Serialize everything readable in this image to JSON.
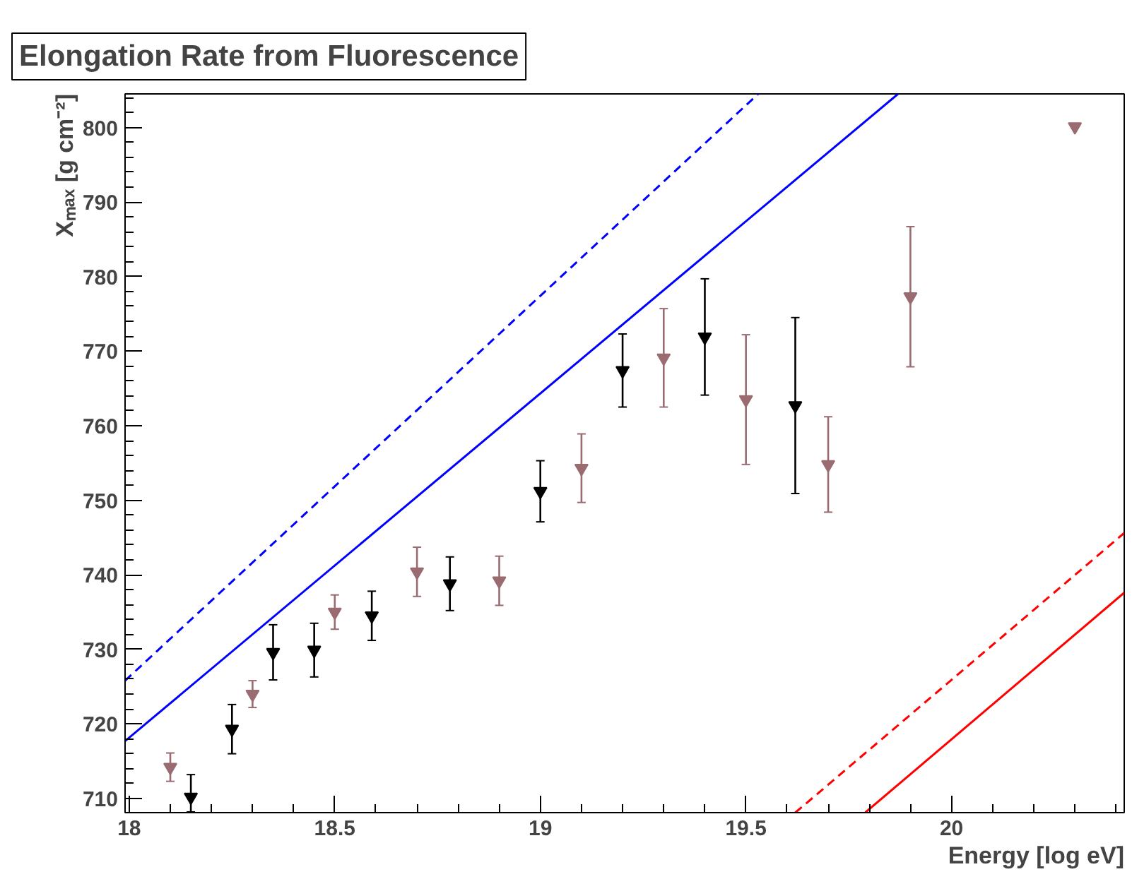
{
  "chart_data": {
    "type": "scatter",
    "title": "Elongation Rate from Fluorescence",
    "xlabel": "Energy [log eV]",
    "ylabel": "Xₘₐₓ [g cm⁻²]",
    "xlim": [
      17.99,
      20.42
    ],
    "ylim": [
      708.1,
      804.5
    ],
    "xticks": [
      18,
      18.5,
      19,
      19.5,
      20
    ],
    "yticks": [
      710,
      720,
      730,
      740,
      750,
      760,
      770,
      780,
      790,
      800
    ],
    "grid": false,
    "series": [
      {
        "color": "#9a6b70",
        "marker": "triangle",
        "x": [
          18.1,
          18.3,
          18.5,
          18.7,
          18.9,
          19.1,
          19.3,
          19.5,
          19.7,
          19.9,
          20.3
        ],
        "values": [
          714.2,
          724.0,
          735.0,
          740.4,
          739.2,
          754.3,
          769.1,
          763.5,
          754.8,
          777.3,
          800.1
        ],
        "errors": [
          1.9,
          1.8,
          2.3,
          3.3,
          3.3,
          4.6,
          6.6,
          8.7,
          6.4,
          9.4,
          null
        ]
      },
      {
        "color": "#000000",
        "marker": "triangle",
        "x": [
          18.15,
          18.25,
          18.35,
          18.45,
          18.59,
          18.78,
          19.0,
          19.2,
          19.4,
          19.62
        ],
        "values": [
          710.2,
          719.3,
          729.6,
          729.9,
          734.5,
          738.8,
          751.2,
          767.4,
          771.9,
          762.7
        ],
        "errors": [
          [
            708.2,
            713.2
          ],
          3.3,
          3.7,
          3.6,
          3.3,
          3.6,
          4.1,
          4.9,
          7.8,
          11.8
        ]
      },
      {
        "type": "line",
        "color": "#0000ff",
        "line_style": "solid",
        "x": [
          17.99,
          19.87
        ],
        "values": [
          717.7,
          804.5
        ]
      },
      {
        "type": "line",
        "color": "#0000ff",
        "line_style": "dashed",
        "x": [
          17.99,
          19.53
        ],
        "values": [
          725.8,
          804.5
        ]
      },
      {
        "type": "line",
        "color": "#ff0000",
        "line_style": "solid",
        "x": [
          19.79,
          20.42
        ],
        "values": [
          708.1,
          737.6
        ]
      },
      {
        "type": "line",
        "color": "#ff0000",
        "line_style": "dashed",
        "x": [
          19.62,
          20.42
        ],
        "values": [
          708.1,
          745.6
        ]
      }
    ]
  }
}
